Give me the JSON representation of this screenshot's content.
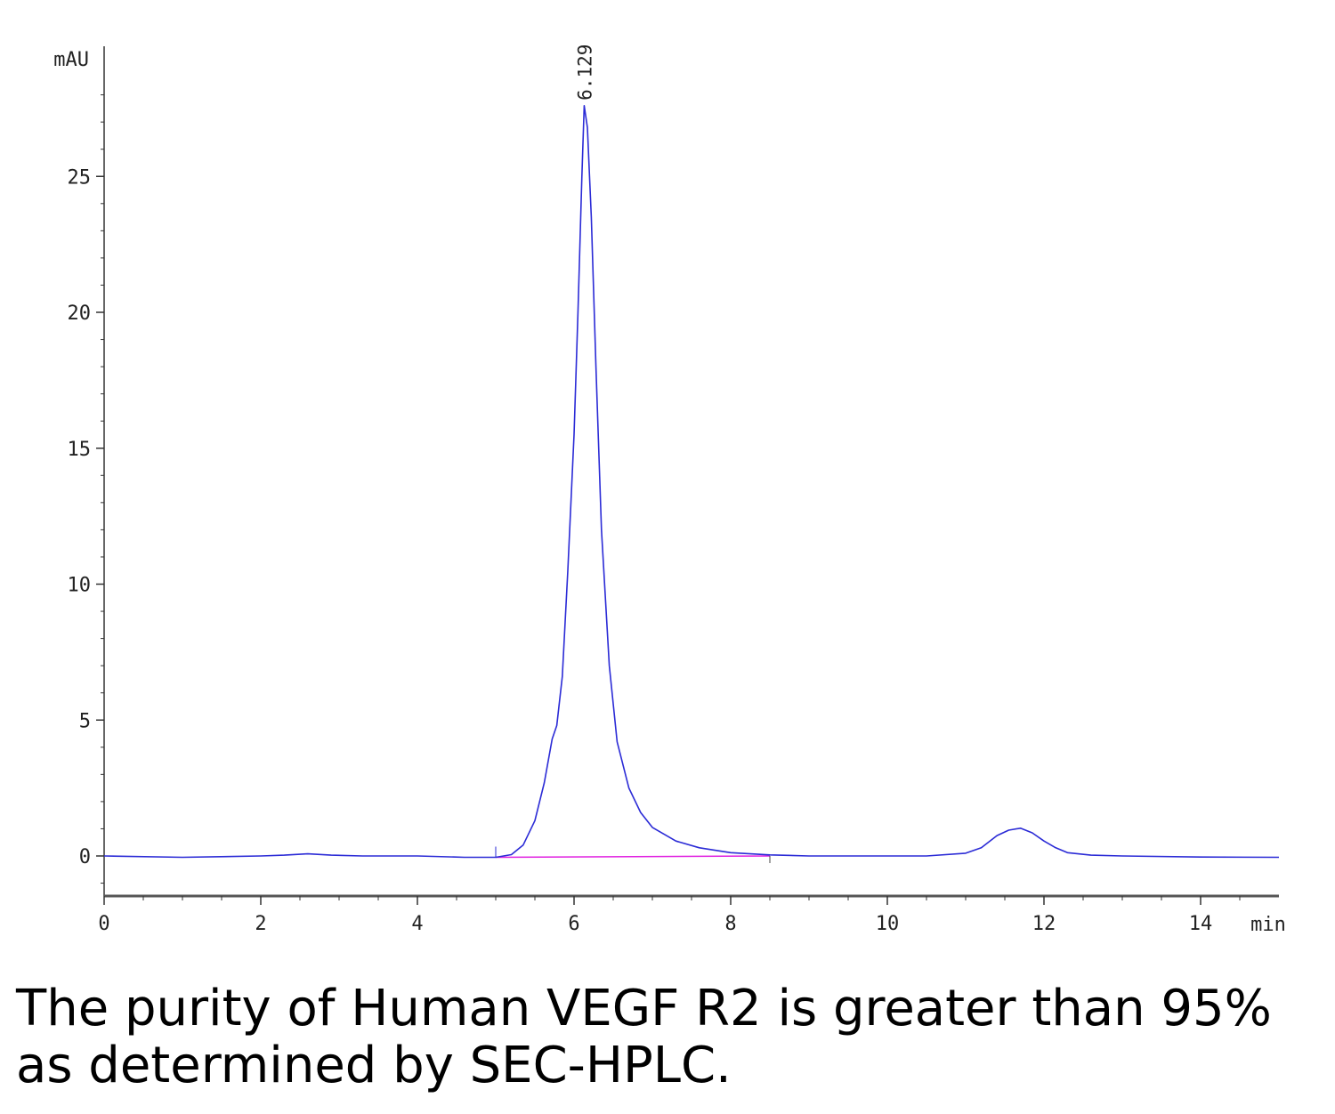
{
  "chart_data": {
    "type": "line",
    "title": "",
    "xlabel": "min",
    "ylabel": "mAU",
    "xlim": [
      0,
      15
    ],
    "ylim": [
      -1.5,
      29
    ],
    "x_ticks": [
      "0",
      "2",
      "4",
      "6",
      "8",
      "10",
      "12",
      "14"
    ],
    "y_ticks": [
      "0",
      "5",
      "10",
      "15",
      "20",
      "25"
    ],
    "grid": false,
    "colors": {
      "signal": "#2b2bd6",
      "baseline": "#e020e0",
      "axis": "#333333"
    },
    "peaks": [
      {
        "label": "6.129",
        "x": 6.129,
        "y": 27.6
      }
    ],
    "series": [
      {
        "x": [
          0.0,
          1.0,
          2.0,
          2.3,
          2.6,
          2.9,
          3.3,
          4.0,
          4.6,
          5.0,
          5.2,
          5.35,
          5.5,
          5.62,
          5.72,
          5.78,
          5.85,
          5.92,
          6.0,
          6.05,
          6.1,
          6.129,
          6.17,
          6.22,
          6.28,
          6.35,
          6.45,
          6.55,
          6.7,
          6.85,
          7.0,
          7.3,
          7.6,
          8.0,
          8.5,
          9.0,
          10.0,
          10.5,
          11.0,
          11.2,
          11.4,
          11.55,
          11.7,
          11.85,
          12.0,
          12.15,
          12.3,
          12.6,
          13.0,
          14.0,
          15.0
        ],
        "y": [
          0.0,
          -0.05,
          0.0,
          0.03,
          0.08,
          0.03,
          0.0,
          0.0,
          -0.05,
          -0.05,
          0.05,
          0.4,
          1.3,
          2.7,
          4.3,
          4.8,
          6.6,
          10.5,
          15.5,
          20.0,
          25.0,
          27.6,
          26.8,
          23.5,
          18.0,
          12.0,
          7.0,
          4.2,
          2.5,
          1.6,
          1.05,
          0.55,
          0.3,
          0.12,
          0.04,
          0.0,
          0.0,
          0.0,
          0.1,
          0.3,
          0.75,
          0.95,
          1.02,
          0.85,
          0.55,
          0.3,
          0.12,
          0.03,
          0.0,
          -0.04,
          -0.05
        ]
      }
    ],
    "baseline_segment": {
      "x": [
        5.0,
        8.5
      ],
      "y": [
        -0.05,
        0.0
      ]
    }
  },
  "caption": "The purity of Human VEGF R2 is greater than 95% as determined by SEC-HPLC."
}
